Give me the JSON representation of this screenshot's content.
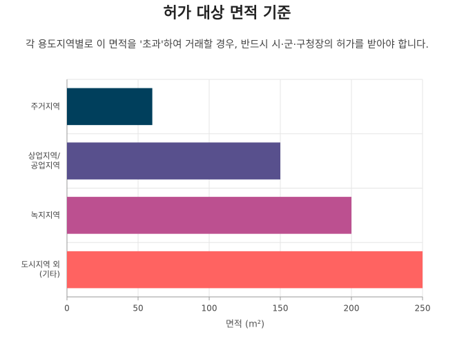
{
  "chart_data": {
    "type": "bar",
    "orientation": "horizontal",
    "title": "허가 대상 면적 기준",
    "subtitle": "각 용도지역별로 이 면적을 '초과'하여 거래할 경우, 반드시 시·군·구청장의 허가를 받아야 합니다.",
    "categories": [
      [
        "주거지역"
      ],
      [
        "상업지역/",
        "공업지역"
      ],
      [
        "녹지지역"
      ],
      [
        "도시지역 외",
        "(기타)"
      ]
    ],
    "values": [
      60,
      150,
      200,
      250
    ],
    "colors": [
      "#003f5c",
      "#58508d",
      "#bc5090",
      "#ff6361"
    ],
    "x_label": "면적 (m²)",
    "xlim": [
      0,
      250
    ],
    "xticks": [
      0,
      50,
      100,
      150,
      200,
      250
    ],
    "grid": true
  }
}
